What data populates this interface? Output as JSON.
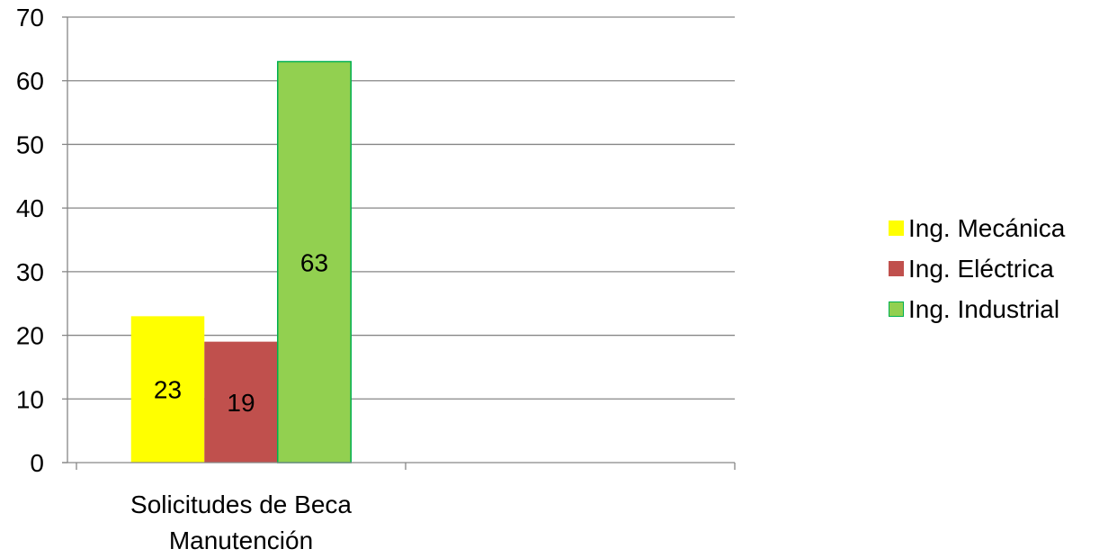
{
  "chart_data": {
    "type": "bar",
    "categories": [
      "Solicitudes de Beca Manutención",
      ""
    ],
    "category_label_lines": [
      [
        "Solicitudes de Beca",
        "Manutención"
      ],
      []
    ],
    "series": [
      {
        "name": "Ing. Mecánica",
        "values": [
          23,
          null
        ],
        "color": "#FFFF00"
      },
      {
        "name": "Ing. Eléctrica",
        "values": [
          19,
          null
        ],
        "color": "#C0504D"
      },
      {
        "name": "Ing. Industrial",
        "values": [
          63,
          null
        ],
        "color": "#92D050"
      }
    ],
    "yticks": [
      0,
      10,
      20,
      30,
      40,
      50,
      60,
      70
    ],
    "ylim": [
      0,
      70
    ],
    "grid": true,
    "legend_position": "right",
    "data_labels": true
  }
}
